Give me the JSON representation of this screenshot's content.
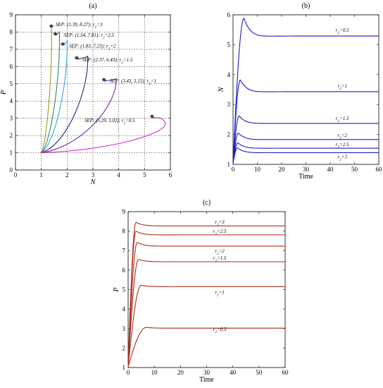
{
  "chart_data": [
    {
      "panel_label": "(a)",
      "type": "line",
      "xlabel": "N",
      "ylabel": "P",
      "xlim": [
        0,
        6
      ],
      "ylim": [
        0,
        9
      ],
      "xticks": [
        0,
        1,
        2,
        3,
        4,
        5,
        6
      ],
      "yticks": [
        0,
        1,
        2,
        3,
        4,
        5,
        6,
        7,
        8,
        9
      ],
      "grid": true,
      "start_point": [
        1,
        1
      ],
      "series": [
        {
          "name": "r2=3",
          "color": "#9a9a20",
          "peak": [
            1.39,
            8.3
          ],
          "equilibrium": [
            1.39,
            8.27
          ],
          "annotation_text": "SEP: (1.39, 8.27); r",
          "annotation_sub": "2",
          "annotation_tail": "=3"
        },
        {
          "name": "r2=2.5",
          "color": "#2e8b57",
          "peak": [
            1.7,
            8.0
          ],
          "equilibrium": [
            1.54,
            7.81
          ],
          "annotation_text": "SEP: (1.54, 7.81); r",
          "annotation_sub": "2",
          "annotation_tail": "=2.5"
        },
        {
          "name": "r2=2",
          "color": "#2ea8d8",
          "peak": [
            2.0,
            7.5
          ],
          "equilibrium": [
            1.83,
            7.23
          ],
          "annotation_text": "SEP: (1.83, 7.23); r",
          "annotation_sub": "2",
          "annotation_tail": "=2"
        },
        {
          "name": "r2=1.5",
          "color": "#1f2a7a",
          "peak": [
            2.8,
            6.6
          ],
          "equilibrium": [
            2.37,
            6.43
          ],
          "annotation_text": "SEP: (2.37, 6.43); r",
          "annotation_sub": "2",
          "annotation_tail": "=1.5"
        },
        {
          "name": "r2=1",
          "color": "#7a2aa8",
          "peak": [
            3.9,
            5.3
          ],
          "equilibrium": [
            3.43,
            5.15
          ],
          "annotation_text": "SEP: (3.43, 5.15); r",
          "annotation_sub": "2",
          "annotation_tail": "=1"
        },
        {
          "name": "r2=0.5",
          "color": "#d030d0",
          "peak": [
            5.8,
            2.7
          ],
          "equilibrium": [
            5.29,
            3.02
          ],
          "annotation_text": "SEP: (5.29, 3.02); r",
          "annotation_sub": "2",
          "annotation_tail": "=0.5"
        }
      ]
    },
    {
      "panel_label": "(b)",
      "type": "line",
      "xlabel": "Time",
      "ylabel": "N",
      "xlim": [
        0,
        60
      ],
      "ylim": [
        1,
        6
      ],
      "xticks": [
        0,
        10,
        20,
        30,
        40,
        50,
        60
      ],
      "yticks": [
        1,
        2,
        3,
        4,
        5,
        6
      ],
      "grid": false,
      "color": "#1a1acc",
      "series": [
        {
          "name": "r2=0.5",
          "peak_time": 4.5,
          "peak": 5.88,
          "steady": 5.29,
          "label_prefix": "r",
          "label_sub": "2",
          "label_tail": "=0.5"
        },
        {
          "name": "r2=1",
          "peak_time": 3.0,
          "peak": 3.82,
          "steady": 3.43,
          "label_prefix": "r",
          "label_sub": "2",
          "label_tail": "=1"
        },
        {
          "name": "r2=1.5",
          "peak_time": 2.5,
          "peak": 2.62,
          "steady": 2.37,
          "label_prefix": "r",
          "label_sub": "2",
          "label_tail": "=1.5"
        },
        {
          "name": "r2=2",
          "peak_time": 2.2,
          "peak": 2.05,
          "steady": 1.83,
          "label_prefix": "r",
          "label_sub": "2",
          "label_tail": "=2"
        },
        {
          "name": "r2=2.5",
          "peak_time": 2.0,
          "peak": 1.72,
          "steady": 1.54,
          "label_prefix": "r",
          "label_sub": "2",
          "label_tail": "=2.5"
        },
        {
          "name": "r2=3",
          "peak_time": 1.8,
          "peak": 1.55,
          "steady": 1.39,
          "label_prefix": "r",
          "label_sub": "2",
          "label_tail": "=3"
        }
      ]
    },
    {
      "panel_label": "(c)",
      "type": "line",
      "xlabel": "Time",
      "ylabel": "P",
      "xlim": [
        0,
        60
      ],
      "ylim": [
        1,
        9
      ],
      "xticks": [
        0,
        10,
        20,
        30,
        40,
        50,
        60
      ],
      "yticks": [
        1,
        2,
        3,
        4,
        5,
        6,
        7,
        8,
        9
      ],
      "grid": false,
      "color": "#b02a1a",
      "series": [
        {
          "name": "r2=3",
          "peak_time": 3.0,
          "peak": 8.45,
          "steady": 8.27,
          "label_prefix": "r",
          "label_sub": "2",
          "label_tail": "=3"
        },
        {
          "name": "r2=2.5",
          "peak_time": 3.0,
          "peak": 8.0,
          "steady": 7.81,
          "label_prefix": "r",
          "label_sub": "2",
          "label_tail": "=2.5"
        },
        {
          "name": "r2=2",
          "peak_time": 3.5,
          "peak": 7.42,
          "steady": 7.23,
          "label_prefix": "r",
          "label_sub": "2",
          "label_tail": "=2"
        },
        {
          "name": "r2=1.5",
          "peak_time": 4.0,
          "peak": 6.55,
          "steady": 6.43,
          "label_prefix": "r",
          "label_sub": "2",
          "label_tail": "=1.5"
        },
        {
          "name": "r2=1",
          "peak_time": 5.0,
          "peak": 5.22,
          "steady": 5.15,
          "label_prefix": "r",
          "label_sub": "2",
          "label_tail": "=1"
        },
        {
          "name": "r2=0.5",
          "peak_time": 7.0,
          "peak": 3.06,
          "steady": 3.02,
          "label_prefix": "r",
          "label_sub": "2",
          "label_tail": "=0.5"
        }
      ]
    }
  ]
}
